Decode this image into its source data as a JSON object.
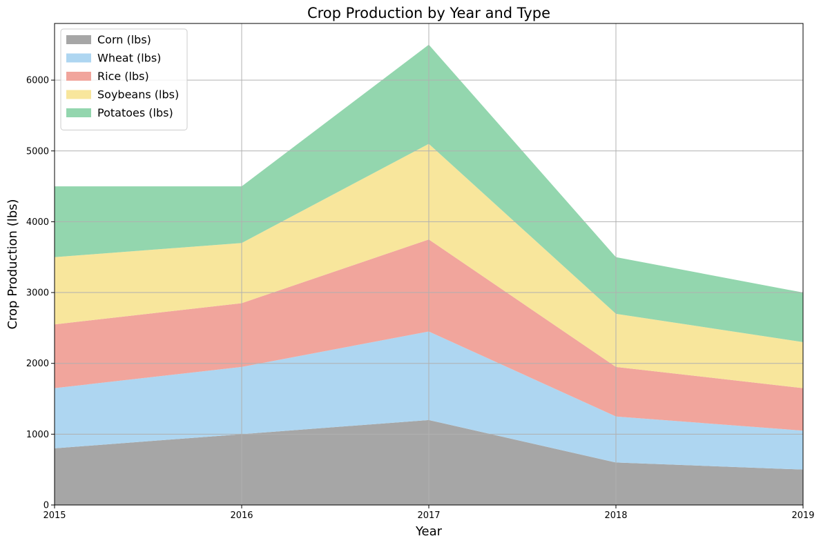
{
  "chart_data": {
    "type": "area",
    "stacked": true,
    "title": "Crop Production by Year and Type",
    "xlabel": "Year",
    "ylabel": "Crop Production (lbs)",
    "x": [
      "2015",
      "2016",
      "2017",
      "2018",
      "2019"
    ],
    "xlim": [
      2015,
      2019
    ],
    "ylim": [
      0,
      6800
    ],
    "yticks": [
      0,
      1000,
      2000,
      3000,
      4000,
      5000,
      6000
    ],
    "grid": true,
    "legend_position": "top-left",
    "series": [
      {
        "name": "Corn (lbs)",
        "color": "#a6a6a6",
        "values": [
          800,
          1000,
          1200,
          600,
          500
        ]
      },
      {
        "name": "Wheat (lbs)",
        "color": "#aed6f1",
        "values": [
          850,
          950,
          1250,
          650,
          550
        ]
      },
      {
        "name": "Rice (lbs)",
        "color": "#f1a59c",
        "values": [
          900,
          900,
          1300,
          700,
          600
        ]
      },
      {
        "name": "Soybeans (lbs)",
        "color": "#f8e69c",
        "values": [
          950,
          850,
          1350,
          750,
          650
        ]
      },
      {
        "name": "Potatoes (lbs)",
        "color": "#93d6ae",
        "values": [
          1000,
          800,
          1400,
          800,
          700
        ]
      }
    ]
  }
}
